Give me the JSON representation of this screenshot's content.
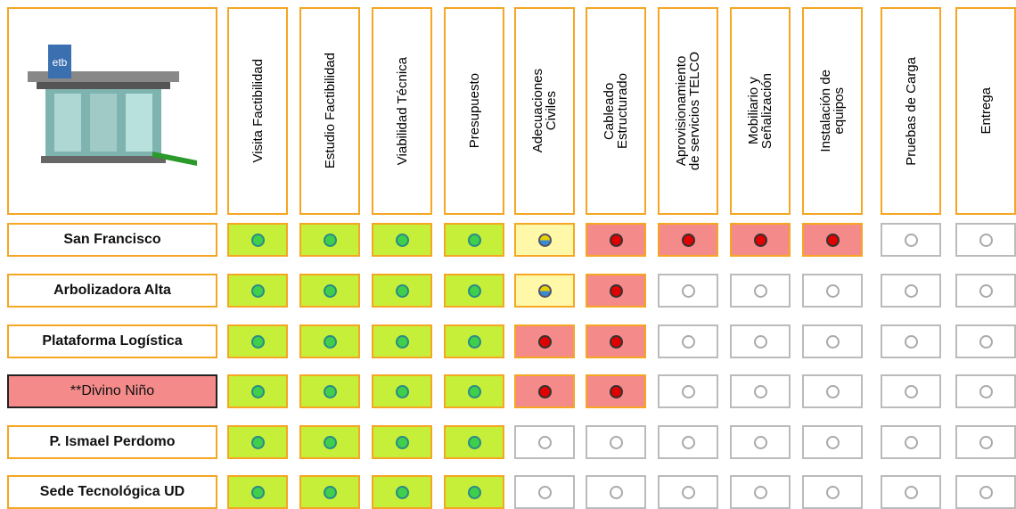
{
  "columns": [
    "Visita Factibilidad",
    "Estudio Factibilidad",
    "Viabilidad Técnica",
    "Presupuesto",
    "Adecuaciones\nCiviles",
    "Cableado\nEstructurado",
    "Aprovisionamiento\nde servicios TELCO",
    "Mobiliario y\nSeñalización",
    "Instalación de\nequipos",
    "Pruebas de Carga",
    "Entrega"
  ],
  "rows": [
    {
      "label": "San Francisco",
      "highlight": false,
      "status": [
        "green",
        "green",
        "green",
        "green",
        "yellow",
        "red",
        "red",
        "red",
        "red",
        "none",
        "none"
      ]
    },
    {
      "label": "Arbolizadora Alta",
      "highlight": false,
      "status": [
        "green",
        "green",
        "green",
        "green",
        "yellow",
        "red",
        "none",
        "none",
        "none",
        "none",
        "none"
      ]
    },
    {
      "label": "Plataforma Logística",
      "highlight": false,
      "status": [
        "green",
        "green",
        "green",
        "green",
        "red",
        "red",
        "none",
        "none",
        "none",
        "none",
        "none"
      ]
    },
    {
      "label": "**Divino Niño",
      "highlight": true,
      "status": [
        "green",
        "green",
        "green",
        "green",
        "red",
        "red",
        "none",
        "none",
        "none",
        "none",
        "none"
      ]
    },
    {
      "label": "P. Ismael Perdomo",
      "highlight": false,
      "status": [
        "green",
        "green",
        "green",
        "green",
        "none",
        "none",
        "none",
        "none",
        "none",
        "none",
        "none"
      ]
    },
    {
      "label": "Sede Tecnológica UD",
      "highlight": false,
      "status": [
        "green",
        "green",
        "green",
        "green",
        "none",
        "none",
        "none",
        "none",
        "none",
        "none",
        "none"
      ]
    }
  ]
}
